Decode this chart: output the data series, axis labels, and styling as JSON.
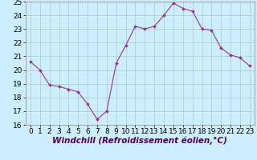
{
  "x": [
    0,
    1,
    2,
    3,
    4,
    5,
    6,
    7,
    8,
    9,
    10,
    11,
    12,
    13,
    14,
    15,
    16,
    17,
    18,
    19,
    20,
    21,
    22,
    23
  ],
  "y": [
    20.6,
    20.0,
    18.9,
    18.8,
    18.6,
    18.4,
    17.5,
    16.4,
    17.0,
    20.5,
    21.8,
    23.2,
    23.0,
    23.2,
    24.0,
    24.9,
    24.5,
    24.3,
    23.0,
    22.9,
    21.6,
    21.1,
    20.9,
    20.3
  ],
  "line_color": "#993399",
  "marker": "D",
  "marker_size": 2.0,
  "bg_color": "#cceeff",
  "grid_color": "#aacccc",
  "xlabel": "Windchill (Refroidissement éolien,°C)",
  "xlim": [
    -0.5,
    23.5
  ],
  "ylim": [
    16,
    25
  ],
  "yticks": [
    16,
    17,
    18,
    19,
    20,
    21,
    22,
    23,
    24,
    25
  ],
  "xticks": [
    0,
    1,
    2,
    3,
    4,
    5,
    6,
    7,
    8,
    9,
    10,
    11,
    12,
    13,
    14,
    15,
    16,
    17,
    18,
    19,
    20,
    21,
    22,
    23
  ],
  "tick_label_fontsize": 6.5,
  "xlabel_fontsize": 7.5
}
